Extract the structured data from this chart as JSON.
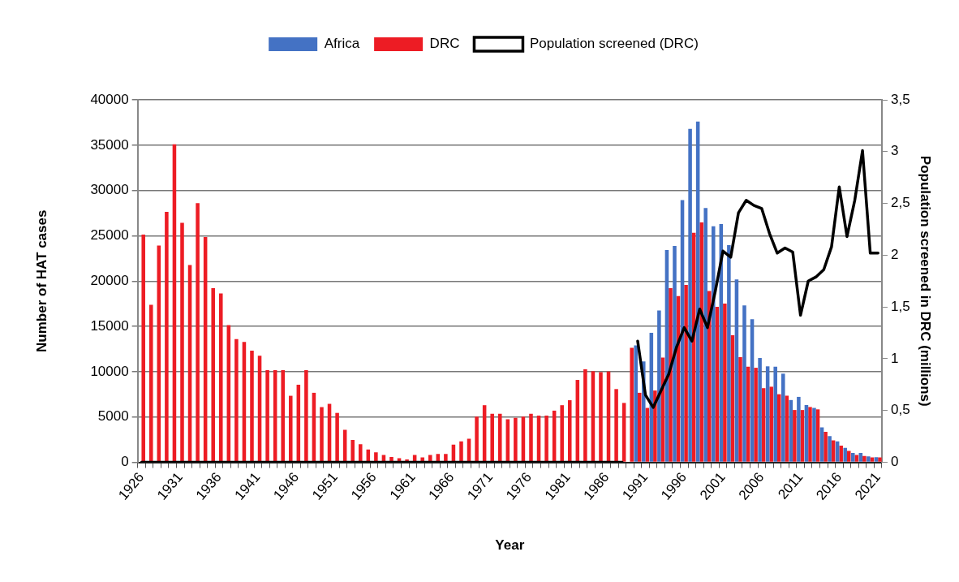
{
  "chart_data": {
    "type": "bar",
    "xlabel": "Year",
    "ylabel": "Number of HAT cases",
    "y2label": "Population screened in DRC (millions)",
    "categories": [
      "1926",
      null,
      null,
      null,
      null,
      "1931",
      null,
      null,
      null,
      null,
      "1936",
      null,
      null,
      null,
      null,
      "1941",
      null,
      null,
      null,
      null,
      "1946",
      null,
      null,
      null,
      null,
      "1951",
      null,
      null,
      null,
      null,
      "1956",
      null,
      null,
      null,
      null,
      "1961",
      null,
      null,
      null,
      null,
      "1966",
      null,
      null,
      null,
      null,
      "1971",
      null,
      null,
      null,
      null,
      "1976",
      null,
      null,
      null,
      null,
      "1981",
      null,
      null,
      null,
      null,
      "1986",
      null,
      null,
      null,
      null,
      "1991",
      null,
      null,
      null,
      null,
      "1996",
      null,
      null,
      null,
      null,
      "2001",
      null,
      null,
      null,
      null,
      "2006",
      null,
      null,
      null,
      null,
      "2011",
      null,
      null,
      null,
      null,
      "2016",
      null,
      null,
      null,
      null,
      "2021"
    ],
    "series": [
      {
        "name": "Africa",
        "color": "#4472c4",
        "values": [
          null,
          null,
          null,
          null,
          null,
          null,
          null,
          null,
          null,
          null,
          null,
          null,
          null,
          null,
          null,
          null,
          null,
          null,
          null,
          null,
          null,
          null,
          null,
          null,
          null,
          null,
          null,
          null,
          null,
          null,
          null,
          null,
          null,
          null,
          null,
          null,
          null,
          null,
          null,
          null,
          null,
          null,
          null,
          null,
          null,
          null,
          null,
          null,
          null,
          null,
          null,
          null,
          null,
          null,
          null,
          null,
          null,
          null,
          null,
          null,
          null,
          null,
          null,
          null,
          12900,
          11130,
          14280,
          16750,
          23420,
          23870,
          28940,
          36800,
          37600,
          28070,
          26050,
          26300,
          23960,
          20180,
          17320,
          15780,
          11510,
          10590,
          10550,
          9780,
          6870,
          7220,
          6320,
          6000,
          3850,
          2890,
          2310,
          1600,
          1030,
          1030,
          650,
          560
        ]
      },
      {
        "name": "DRC",
        "color": "#ed1c24",
        "values": [
          25140,
          17380,
          23920,
          27640,
          35100,
          26420,
          21770,
          28600,
          24850,
          19210,
          18630,
          15140,
          13600,
          13280,
          12310,
          11770,
          10170,
          10170,
          10170,
          7340,
          8560,
          10170,
          7670,
          6090,
          6450,
          5450,
          3590,
          2470,
          1990,
          1410,
          1090,
          800,
          590,
          450,
          320,
          800,
          550,
          800,
          930,
          930,
          1960,
          2310,
          2590,
          5050,
          6300,
          5360,
          5360,
          4740,
          4900,
          5050,
          5360,
          5150,
          5150,
          5700,
          6300,
          6850,
          9090,
          10270,
          10050,
          9950,
          10020,
          8080,
          6550,
          12640,
          7670,
          6000,
          7920,
          11550,
          19220,
          18350,
          19570,
          25340,
          26470,
          18900,
          17160,
          17520,
          14020,
          11610,
          10550,
          10430,
          8180,
          8340,
          7510,
          7350,
          5770,
          5770,
          6100,
          5840,
          3370,
          2410,
          1830,
          1250,
          800,
          700,
          550,
          550
        ]
      },
      {
        "name": "Population screened (DRC)",
        "type": "line",
        "axis": "y2",
        "color": "#000000",
        "values": [
          0,
          0,
          0,
          0,
          0,
          0,
          0,
          0,
          0,
          0,
          0,
          0,
          0,
          0,
          0,
          0,
          0,
          0,
          0,
          0,
          0,
          0,
          0,
          0,
          0,
          0,
          0,
          0,
          0,
          0,
          0,
          0,
          0,
          0,
          0,
          0,
          0,
          0,
          0,
          0,
          0,
          0,
          0,
          0,
          0,
          0,
          0,
          0,
          0,
          0,
          0,
          0,
          0,
          0,
          0,
          0,
          0,
          0,
          0,
          0,
          0,
          0,
          0,
          null,
          1.17,
          0.65,
          0.53,
          0.69,
          0.85,
          1.11,
          1.3,
          1.17,
          1.48,
          1.3,
          1.65,
          2.04,
          1.98,
          2.41,
          2.53,
          2.48,
          2.45,
          2.21,
          2.02,
          2.07,
          2.03,
          1.42,
          1.75,
          1.79,
          1.86,
          2.08,
          2.66,
          2.18,
          2.53,
          3.01,
          2.02,
          2.02
        ]
      }
    ],
    "ylim": [
      0,
      40000
    ],
    "yticks": [
      0,
      5000,
      10000,
      15000,
      20000,
      25000,
      30000,
      35000,
      40000
    ],
    "y2lim": [
      0,
      3.5
    ],
    "y2ticks": [
      0,
      {
        "value": 0.5,
        "label": "0,5"
      },
      1,
      {
        "value": 1.5,
        "label": "1,5"
      },
      2,
      {
        "value": 2.5,
        "label": "2,5"
      },
      3,
      {
        "value": 3.5,
        "label": "3,5"
      }
    ],
    "grid": "y",
    "legend": "top",
    "marker": "none"
  }
}
